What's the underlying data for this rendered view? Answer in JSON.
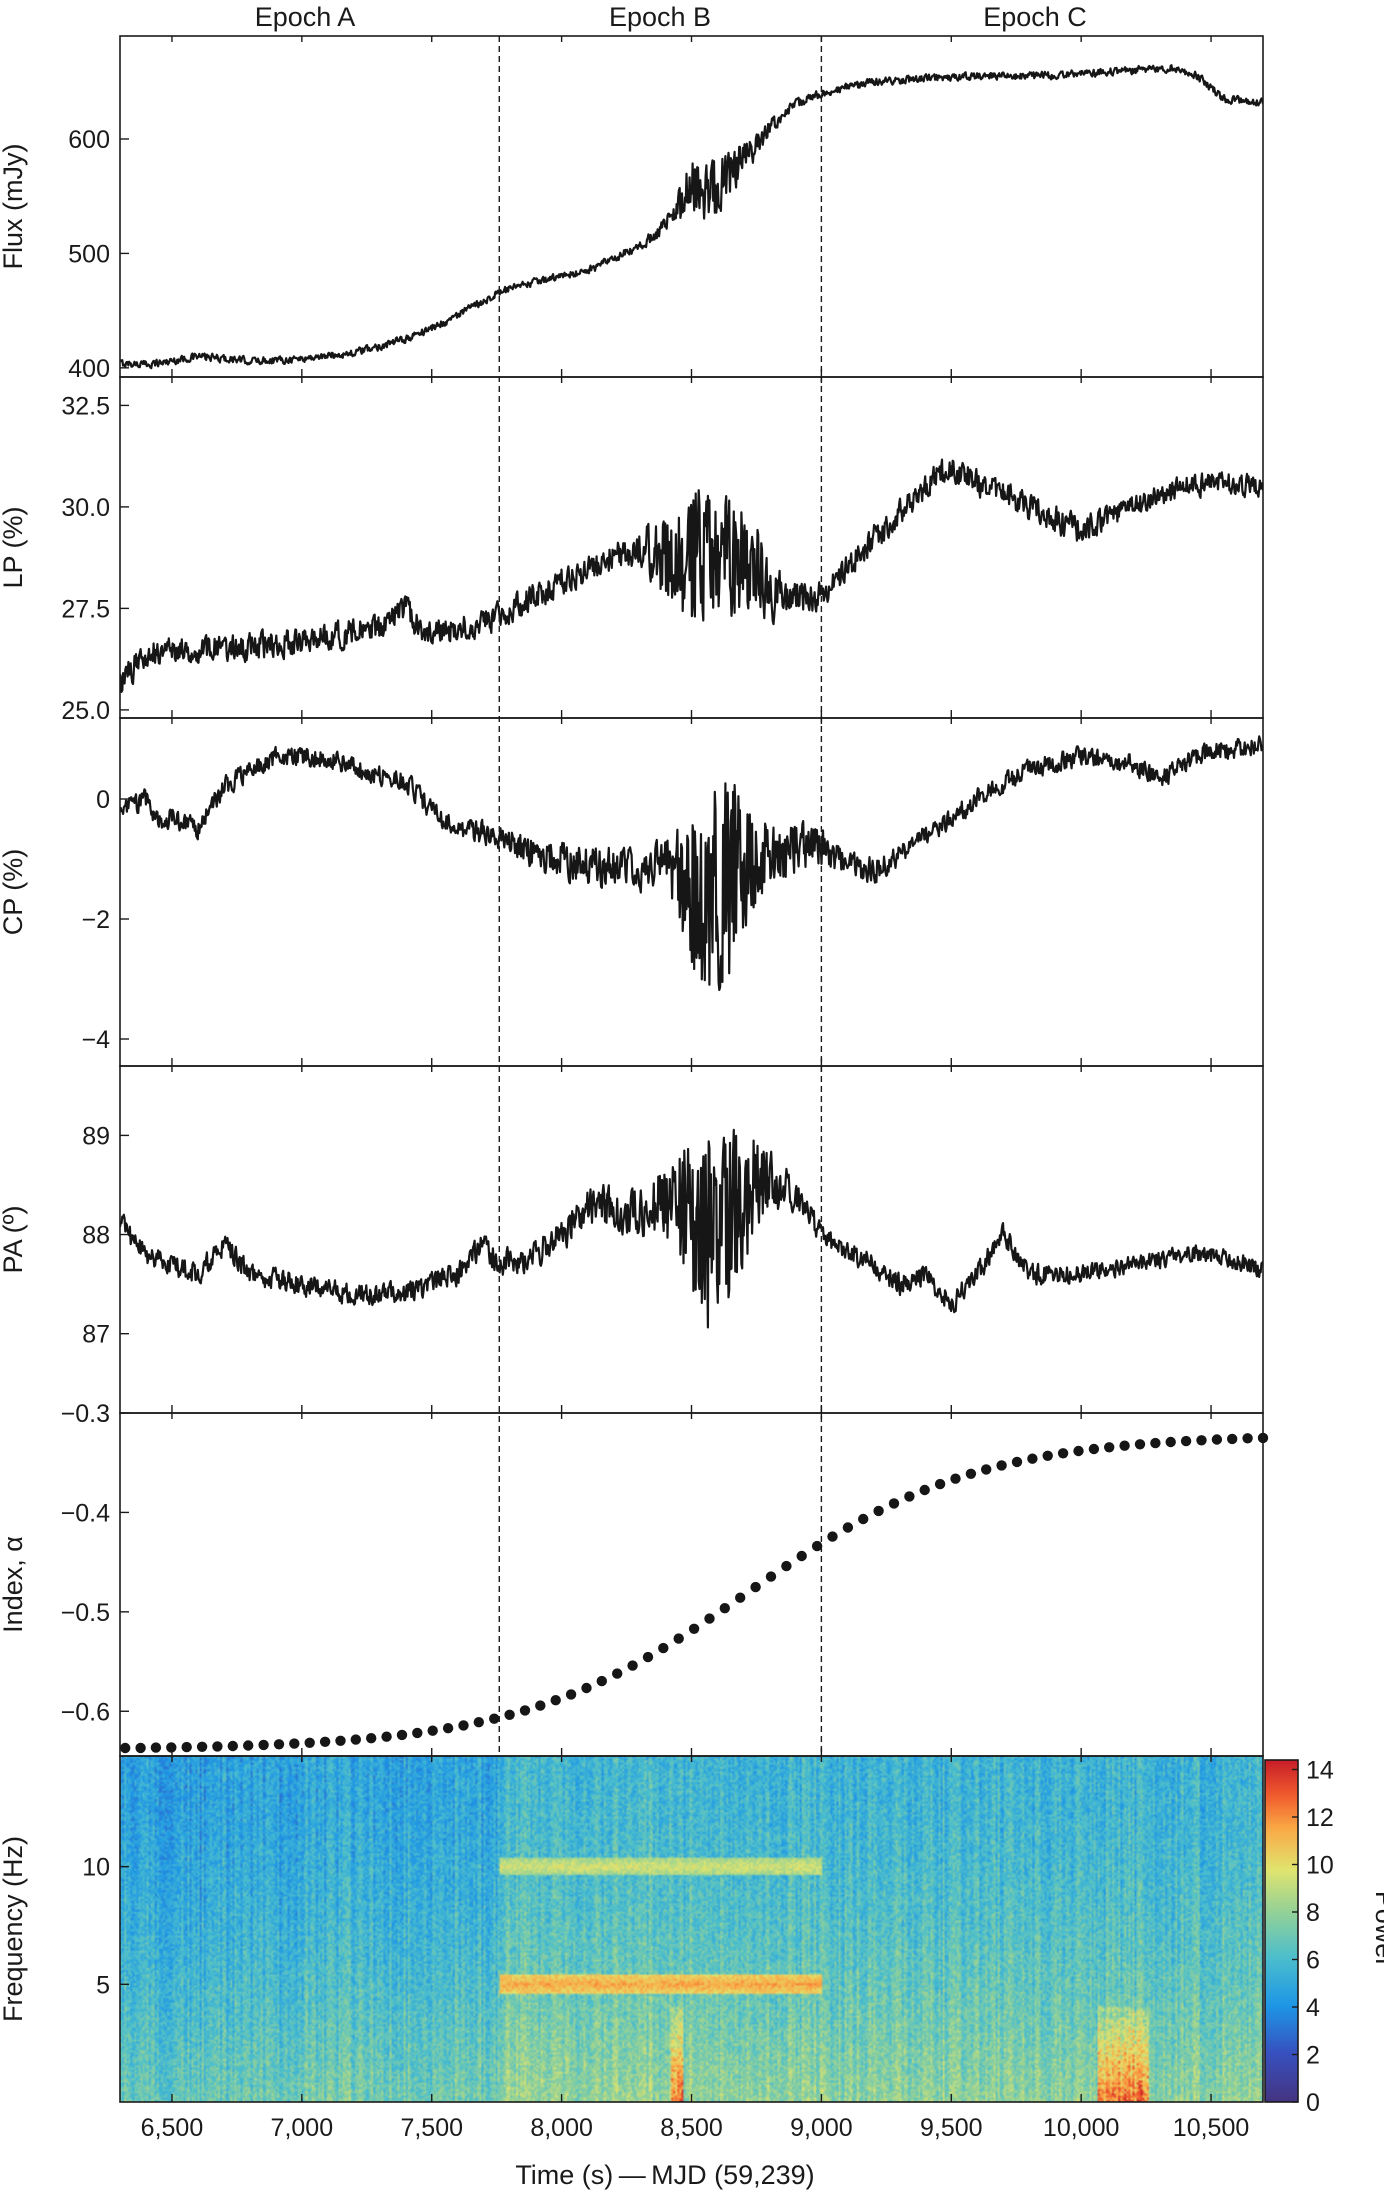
{
  "chart_data": {
    "type": "multi-panel",
    "epochs": [
      {
        "label": "Epoch A",
        "start": 6300,
        "end": 7760
      },
      {
        "label": "Epoch B",
        "start": 7760,
        "end": 9000
      },
      {
        "label": "Epoch C",
        "start": 9000,
        "end": 10700
      }
    ],
    "dividers": [
      7760,
      9000
    ],
    "x": {
      "label": "Time (s) — MJD (59,239)",
      "lim": [
        6300,
        10700
      ],
      "ticks": [
        6500,
        7000,
        7500,
        8000,
        8500,
        9000,
        9500,
        10000,
        10500
      ],
      "tick_labels": [
        "6,500",
        "7,000",
        "7,500",
        "8,000",
        "8,500",
        "9,000",
        "9,500",
        "10,000",
        "10,500"
      ]
    },
    "panels": [
      {
        "id": "flux",
        "type": "line",
        "ylabel": "Flux (mJy)",
        "ylim": [
          392,
          690
        ],
        "yticks": [
          400,
          500,
          600
        ],
        "ytick_labels": [
          "400",
          "500",
          "600"
        ],
        "x": [
          6300,
          6400,
          6500,
          6600,
          6700,
          6800,
          7000,
          7200,
          7400,
          7550,
          7760,
          7900,
          8100,
          8300,
          8400,
          8500,
          8550,
          8620,
          8700,
          8800,
          8900,
          9000,
          9200,
          9400,
          9600,
          9800,
          10000,
          10200,
          10350,
          10450,
          10550,
          10700
        ],
        "values": [
          404,
          403,
          406,
          410,
          408,
          406,
          408,
          413,
          425,
          440,
          466,
          475,
          485,
          505,
          525,
          560,
          555,
          562,
          580,
          610,
          630,
          640,
          650,
          653,
          655,
          655,
          657,
          660,
          662,
          655,
          635,
          632
        ],
        "noise": [
          3,
          3,
          3,
          3,
          3,
          3,
          3,
          3,
          3,
          3,
          3,
          3,
          3,
          4,
          6,
          20,
          28,
          25,
          15,
          6,
          4,
          3,
          3,
          3,
          3,
          3,
          3,
          3,
          3,
          3,
          3,
          3
        ]
      },
      {
        "id": "lp",
        "type": "line",
        "ylabel": "LP (%)",
        "ylim": [
          24.8,
          33.2
        ],
        "yticks": [
          25.0,
          27.5,
          30.0,
          32.5
        ],
        "ytick_labels": [
          "25.0",
          "27.5",
          "30.0",
          "32.5"
        ],
        "x": [
          6300,
          6400,
          6500,
          6700,
          6900,
          7100,
          7300,
          7400,
          7450,
          7500,
          7600,
          7760,
          7900,
          8100,
          8300,
          8450,
          8550,
          8650,
          8750,
          8850,
          9000,
          9200,
          9400,
          9500,
          9600,
          9800,
          10000,
          10200,
          10400,
          10500,
          10700
        ],
        "values": [
          25.6,
          26.4,
          26.5,
          26.5,
          26.6,
          26.8,
          27.0,
          27.5,
          27.0,
          26.9,
          27.0,
          27.3,
          27.8,
          28.5,
          29.0,
          28.6,
          29.0,
          28.8,
          28.5,
          27.7,
          27.8,
          29.2,
          30.5,
          31.0,
          30.6,
          30.0,
          29.4,
          30.0,
          30.5,
          30.6,
          30.5
        ],
        "noise": [
          0.35,
          0.3,
          0.3,
          0.3,
          0.3,
          0.3,
          0.3,
          0.3,
          0.3,
          0.3,
          0.3,
          0.3,
          0.3,
          0.35,
          0.4,
          1.2,
          2.0,
          1.5,
          1.0,
          0.5,
          0.3,
          0.3,
          0.3,
          0.3,
          0.3,
          0.3,
          0.3,
          0.25,
          0.25,
          0.25,
          0.25
        ]
      },
      {
        "id": "cp",
        "type": "line",
        "ylabel": "CP (%)",
        "ylim": [
          -4.45,
          1.35
        ],
        "yticks": [
          -4,
          -2,
          0
        ],
        "ytick_labels": [
          "−4",
          "−2",
          "0"
        ],
        "x": [
          6300,
          6400,
          6450,
          6500,
          6600,
          6700,
          6900,
          7100,
          7300,
          7400,
          7500,
          7600,
          7760,
          7900,
          8100,
          8300,
          8400,
          8500,
          8600,
          8700,
          8800,
          9000,
          9100,
          9200,
          9400,
          9600,
          9800,
          10000,
          10100,
          10200,
          10300,
          10400,
          10500,
          10700
        ],
        "values": [
          -0.2,
          0.0,
          -0.4,
          -0.3,
          -0.5,
          0.2,
          0.7,
          0.7,
          0.4,
          0.3,
          -0.2,
          -0.5,
          -0.6,
          -0.9,
          -1.1,
          -1.2,
          -1.0,
          -1.5,
          -1.6,
          -1.0,
          -0.9,
          -0.8,
          -1.1,
          -1.2,
          -0.6,
          0.0,
          0.5,
          0.7,
          0.6,
          0.6,
          0.3,
          0.6,
          0.8,
          0.9
        ],
        "noise": [
          0.15,
          0.15,
          0.15,
          0.15,
          0.15,
          0.15,
          0.15,
          0.15,
          0.15,
          0.15,
          0.15,
          0.15,
          0.2,
          0.25,
          0.3,
          0.3,
          0.35,
          1.3,
          1.9,
          1.2,
          0.5,
          0.3,
          0.2,
          0.2,
          0.15,
          0.15,
          0.15,
          0.15,
          0.15,
          0.15,
          0.15,
          0.15,
          0.15,
          0.15
        ]
      },
      {
        "id": "pa",
        "type": "line",
        "ylabel": "PA (º)",
        "ylim": [
          86.2,
          89.7
        ],
        "yticks": [
          87,
          88,
          89
        ],
        "ytick_labels": [
          "87",
          "88",
          "89"
        ],
        "x": [
          6300,
          6400,
          6500,
          6600,
          6700,
          6800,
          7000,
          7200,
          7400,
          7600,
          7700,
          7760,
          7900,
          8000,
          8100,
          8300,
          8400,
          8500,
          8600,
          8700,
          8800,
          8900,
          9000,
          9200,
          9300,
          9400,
          9500,
          9600,
          9700,
          9800,
          10000,
          10200,
          10400,
          10500,
          10700
        ],
        "values": [
          88.1,
          87.8,
          87.7,
          87.6,
          87.9,
          87.6,
          87.5,
          87.4,
          87.4,
          87.6,
          87.9,
          87.7,
          87.8,
          88.0,
          88.3,
          88.2,
          88.4,
          88.2,
          87.9,
          88.4,
          88.6,
          88.4,
          88.0,
          87.7,
          87.5,
          87.6,
          87.3,
          87.6,
          88.0,
          87.6,
          87.6,
          87.7,
          87.8,
          87.8,
          87.65
        ],
        "noise": [
          0.12,
          0.1,
          0.1,
          0.1,
          0.1,
          0.1,
          0.1,
          0.1,
          0.1,
          0.1,
          0.12,
          0.12,
          0.14,
          0.15,
          0.18,
          0.2,
          0.4,
          0.8,
          1.1,
          0.7,
          0.3,
          0.15,
          0.1,
          0.1,
          0.1,
          0.1,
          0.1,
          0.1,
          0.1,
          0.1,
          0.08,
          0.08,
          0.08,
          0.08,
          0.08
        ]
      },
      {
        "id": "index",
        "type": "scatter",
        "ylabel": "Index, α",
        "ylim": [
          -0.645,
          -0.3
        ],
        "yticks": [
          -0.6,
          -0.5,
          -0.4,
          -0.3
        ],
        "ytick_labels": [
          "−0.6",
          "−0.5",
          "−0.4",
          "−0.3"
        ],
        "model": "logistic",
        "x_start": 6320,
        "x_end": 10700,
        "n_points": 75,
        "y_start": -0.637,
        "y_end": -0.325,
        "y_mid_time": 8720
      },
      {
        "id": "spec",
        "type": "heatmap",
        "ylabel": "Frequency (Hz)",
        "ylim": [
          0,
          14.7
        ],
        "yticks": [
          5,
          10
        ],
        "ytick_labels": [
          "5",
          "10"
        ],
        "colorbar": {
          "label": "Power",
          "lim": [
            0,
            14.4
          ],
          "ticks": [
            0,
            2,
            4,
            6,
            8,
            10,
            12,
            14
          ],
          "tick_labels": [
            "0",
            "2",
            "4",
            "6",
            "8",
            "10",
            "12",
            "14"
          ]
        },
        "bands": [
          {
            "freq": 10,
            "start": 7760,
            "end": 9000,
            "power": 9.5
          },
          {
            "freq": 5,
            "start": 7760,
            "end": 9000,
            "power": 11.5
          }
        ]
      }
    ]
  }
}
